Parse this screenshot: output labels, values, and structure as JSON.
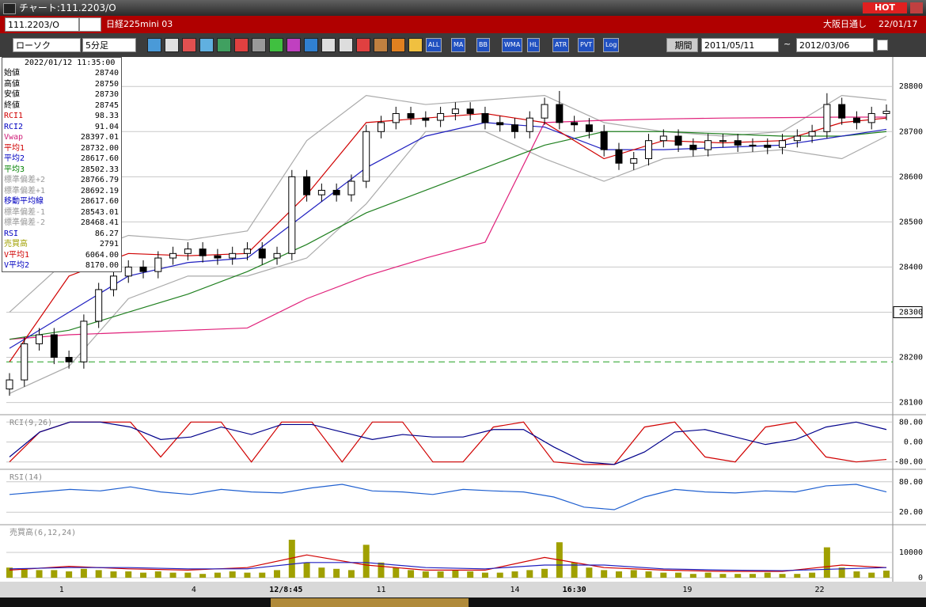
{
  "window": {
    "title": "チャート:111.2203/O",
    "badge": "HOT"
  },
  "symbol_bar": {
    "code": "111.2203/O",
    "name": "日経225mini 03",
    "session": "大阪日通し",
    "date": "22/01/17"
  },
  "toolbar": {
    "chart_kind": "ローソク",
    "interval": "5分足",
    "buttons": [
      "ALL",
      "MA",
      "BB",
      "WMA",
      "HL",
      "ATR",
      "PVT",
      "Log"
    ],
    "period_button": "期間",
    "from": "2011/05/11",
    "tilde": "~",
    "to": "2012/03/06"
  },
  "info_panel": {
    "date": "2022/01/12",
    "time": "11:35:00",
    "rows": [
      {
        "label": "始値",
        "value": "28740",
        "color": "#000000"
      },
      {
        "label": "高値",
        "value": "28750",
        "color": "#000000"
      },
      {
        "label": "安値",
        "value": "28730",
        "color": "#000000"
      },
      {
        "label": "終値",
        "value": "28745",
        "color": "#000000"
      },
      {
        "label": "RCI1",
        "value": "98.33",
        "color": "#d00000"
      },
      {
        "label": "RCI2",
        "value": "91.04",
        "color": "#0000c0"
      },
      {
        "label": "Vwap",
        "value": "28397.01",
        "color": "#d0207a"
      },
      {
        "label": "平均1",
        "value": "28732.00",
        "color": "#d00000"
      },
      {
        "label": "平均2",
        "value": "28617.60",
        "color": "#0000c0"
      },
      {
        "label": "平均3",
        "value": "28502.33",
        "color": "#008000"
      },
      {
        "label": "標準偏差+2",
        "value": "28766.79",
        "color": "#999999"
      },
      {
        "label": "標準偏差+1",
        "value": "28692.19",
        "color": "#999999"
      },
      {
        "label": "移動平均線",
        "value": "28617.60",
        "color": "#0000c0"
      },
      {
        "label": "標準偏差-1",
        "value": "28543.01",
        "color": "#999999"
      },
      {
        "label": "標準偏差-2",
        "value": "28468.41",
        "color": "#999999"
      },
      {
        "label": "RSI",
        "value": "86.27",
        "color": "#0000c0"
      },
      {
        "label": "売買高",
        "value": "2791",
        "color": "#a0a000"
      },
      {
        "label": "V平均1",
        "value": "6064.00",
        "color": "#d00000"
      },
      {
        "label": "V平均2",
        "value": "8170.00",
        "color": "#0000c0"
      }
    ]
  },
  "chart_data": [
    {
      "type": "candlestick",
      "ylim": [
        28080,
        28860
      ],
      "yticks": [
        28100,
        28200,
        28300,
        28400,
        28500,
        28600,
        28700,
        28800
      ],
      "reference_line": 28190,
      "open": [
        28130,
        28150,
        28230,
        28250,
        28200,
        28190,
        28280,
        28350,
        28380,
        28400,
        28390,
        28420,
        28430,
        28440,
        28425,
        28420,
        28430,
        28440,
        28420,
        28430,
        28600,
        28560,
        28570,
        28560,
        28590,
        28700,
        28720,
        28740,
        28730,
        28725,
        28740,
        28750,
        28740,
        28720,
        28715,
        28700,
        28730,
        28760,
        28720,
        28715,
        28700,
        28660,
        28630,
        28640,
        28680,
        28690,
        28670,
        28660,
        28680,
        28680,
        28670,
        28670,
        28665,
        28680,
        28690,
        28700,
        28760,
        28730,
        28720,
        28740
      ],
      "high": [
        28165,
        28245,
        28265,
        28265,
        28215,
        28295,
        28365,
        28395,
        28415,
        28415,
        28435,
        28445,
        28455,
        28455,
        28440,
        28445,
        28455,
        28455,
        28445,
        28615,
        28615,
        28585,
        28585,
        28605,
        28715,
        28735,
        28755,
        28755,
        28745,
        28755,
        28765,
        28765,
        28755,
        28735,
        28730,
        28745,
        28775,
        28790,
        28735,
        28730,
        28715,
        28675,
        28655,
        28695,
        28705,
        28705,
        28685,
        28695,
        28695,
        28695,
        28685,
        28685,
        28695,
        28705,
        28715,
        28785,
        28775,
        28745,
        28755,
        28760
      ],
      "low": [
        28115,
        28135,
        28215,
        28185,
        28175,
        28175,
        28265,
        28335,
        28365,
        28375,
        28375,
        28405,
        28415,
        28410,
        28405,
        28405,
        28415,
        28405,
        28405,
        28415,
        28545,
        28545,
        28545,
        28545,
        28575,
        28685,
        28705,
        28715,
        28710,
        28710,
        28725,
        28725,
        28705,
        28700,
        28685,
        28685,
        28715,
        28705,
        28700,
        28685,
        28645,
        28615,
        28615,
        28625,
        28665,
        28655,
        28645,
        28645,
        28665,
        28655,
        28655,
        28650,
        28650,
        28665,
        28675,
        28685,
        28715,
        28705,
        28705,
        28725
      ],
      "close": [
        28150,
        28230,
        28250,
        28200,
        28190,
        28280,
        28350,
        28380,
        28400,
        28390,
        28420,
        28430,
        28440,
        28425,
        28420,
        28430,
        28440,
        28420,
        28430,
        28600,
        28560,
        28570,
        28560,
        28590,
        28700,
        28720,
        28740,
        28730,
        28725,
        28740,
        28750,
        28740,
        28720,
        28715,
        28700,
        28730,
        28760,
        28720,
        28715,
        28700,
        28660,
        28630,
        28640,
        28680,
        28690,
        28670,
        28660,
        28680,
        28680,
        28670,
        28670,
        28665,
        28680,
        28690,
        28700,
        28760,
        28730,
        28720,
        28740,
        28745
      ],
      "line_x": [
        0,
        4,
        8,
        12,
        16,
        20,
        24,
        28,
        32,
        36,
        40,
        44,
        48,
        52,
        56,
        59
      ],
      "series": [
        {
          "color": "#aaaaaa",
          "values": [
            28300,
            28420,
            28470,
            28460,
            28480,
            28680,
            28780,
            28760,
            28770,
            28780,
            28720,
            28700,
            28690,
            28700,
            28780,
            28770
          ]
        },
        {
          "color": "#aaaaaa",
          "values": [
            28120,
            28180,
            28330,
            28380,
            28380,
            28420,
            28540,
            28700,
            28700,
            28640,
            28590,
            28640,
            28650,
            28660,
            28640,
            28690
          ]
        },
        {
          "color": "#e0207a",
          "values": [
            28240,
            28250,
            28255,
            28260,
            28265,
            28330,
            28380,
            28420,
            28455,
            28720,
            28725,
            28728,
            28730,
            28731,
            28732,
            28732
          ]
        },
        {
          "color": "#208020",
          "values": [
            28240,
            28260,
            28300,
            28340,
            28390,
            28450,
            28520,
            28570,
            28620,
            28670,
            28700,
            28700,
            28695,
            28690,
            28690,
            28700
          ]
        },
        {
          "color": "#2020c0",
          "values": [
            28220,
            28300,
            28380,
            28410,
            28420,
            28520,
            28620,
            28690,
            28720,
            28710,
            28660,
            28660,
            28665,
            28670,
            28690,
            28705
          ]
        },
        {
          "color": "#d00000",
          "values": [
            28190,
            28380,
            28430,
            28425,
            28430,
            28560,
            28720,
            28730,
            28740,
            28720,
            28640,
            28680,
            28675,
            28680,
            28720,
            28730
          ]
        }
      ],
      "x_labels": [
        "1",
        "4",
        "12/8:45",
        "11",
        "14",
        "16:30",
        "19",
        "22"
      ]
    },
    {
      "type": "line",
      "title": "RCI(9,26)",
      "ylim": [
        -100,
        100
      ],
      "yticks": [
        {
          "value": 80,
          "label": "80.00"
        },
        {
          "value": 0,
          "label": "0.00"
        },
        {
          "value": -80,
          "label": "-80.00"
        }
      ],
      "series": [
        {
          "color": "#d00000",
          "values": [
            -80,
            40,
            80,
            80,
            80,
            -60,
            80,
            80,
            -80,
            80,
            80,
            -80,
            80,
            80,
            -80,
            -80,
            60,
            80,
            -80,
            -90,
            -90,
            60,
            80,
            -60,
            -80,
            60,
            80,
            -60,
            -80,
            -70
          ]
        },
        {
          "color": "#00008b",
          "values": [
            -60,
            40,
            80,
            80,
            60,
            10,
            20,
            60,
            30,
            70,
            70,
            40,
            10,
            30,
            20,
            20,
            50,
            50,
            -20,
            -80,
            -90,
            -40,
            40,
            50,
            20,
            -10,
            10,
            60,
            80,
            50
          ]
        }
      ]
    },
    {
      "type": "line",
      "title": "RSI(14)",
      "ylim": [
        0,
        100
      ],
      "yticks": [
        {
          "value": 80,
          "label": "80.00"
        },
        {
          "value": 20,
          "label": "20.00"
        }
      ],
      "series": [
        {
          "color": "#2060d0",
          "values": [
            55,
            60,
            65,
            62,
            70,
            60,
            55,
            65,
            60,
            58,
            68,
            75,
            62,
            60,
            55,
            65,
            62,
            60,
            50,
            30,
            25,
            50,
            65,
            60,
            58,
            62,
            60,
            72,
            75,
            60
          ]
        }
      ]
    },
    {
      "type": "bar",
      "title": "売買高(6,12,24)",
      "ylim": [
        0,
        20000
      ],
      "yticks": [
        10000,
        0
      ],
      "color": "#a0a000",
      "values": [
        4000,
        3500,
        3000,
        3000,
        2500,
        3500,
        3000,
        2500,
        2500,
        2000,
        2500,
        2000,
        2000,
        1500,
        2000,
        2500,
        2000,
        2000,
        3000,
        15000,
        6000,
        4000,
        3500,
        3000,
        13000,
        6000,
        4000,
        3000,
        2500,
        2500,
        3000,
        2500,
        2000,
        2000,
        2500,
        3000,
        3500,
        14000,
        6000,
        4000,
        3000,
        2500,
        3000,
        2500,
        2000,
        2000,
        1500,
        2000,
        1500,
        1500,
        1500,
        2000,
        1500,
        1500,
        2000,
        12000,
        4000,
        2500,
        2000,
        2791
      ],
      "series": [
        {
          "color": "#d00000",
          "values": [
            3000,
            4500,
            3500,
            3000,
            4000,
            9000,
            5000,
            3000,
            3000,
            8000,
            4000,
            3000,
            2500,
            2500,
            5000,
            4000
          ]
        },
        {
          "color": "#2020c0",
          "values": [
            3500,
            4000,
            4000,
            3500,
            3500,
            6000,
            6000,
            4000,
            3500,
            5000,
            5000,
            3500,
            3000,
            2800,
            3500,
            4000
          ]
        }
      ]
    }
  ]
}
